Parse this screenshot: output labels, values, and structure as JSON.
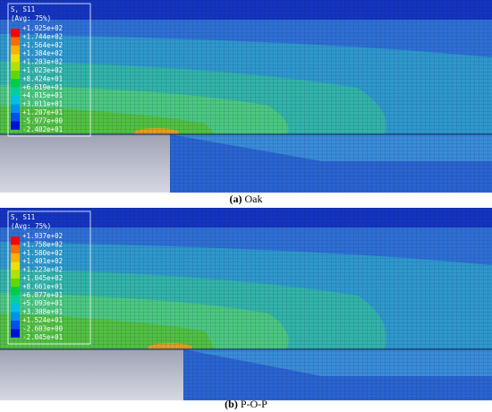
{
  "panels": [
    {
      "legend_title": "S, S11",
      "legend_subtitle": "(Avg: 75%)",
      "legend_values": [
        "+1.925e+02",
        "+1.744e+02",
        "+1.564e+02",
        "+1.384e+02",
        "+1.203e+02",
        "+1.023e+02",
        "+8.424e+01",
        "+6.619e+01",
        "+4.815e+01",
        "+3.011e+01",
        "+1.207e+01",
        "-5.977e+00",
        "-2.402e+01"
      ],
      "caption_label": "(a)",
      "caption_text": "Oak"
    },
    {
      "legend_title": "S, S11",
      "legend_subtitle": "(Avg: 75%)",
      "legend_values": [
        "+1.937e+02",
        "+1.758e+02",
        "+1.580e+02",
        "+1.401e+02",
        "+1.223e+02",
        "+1.045e+02",
        "+8.661e+01",
        "+6.877e+01",
        "+5.093e+01",
        "+3.308e+01",
        "+1.524e+01",
        "-2.603e+00",
        "-2.045e+01"
      ],
      "caption_label": "(b)",
      "caption_text": "P-O-P"
    }
  ]
}
